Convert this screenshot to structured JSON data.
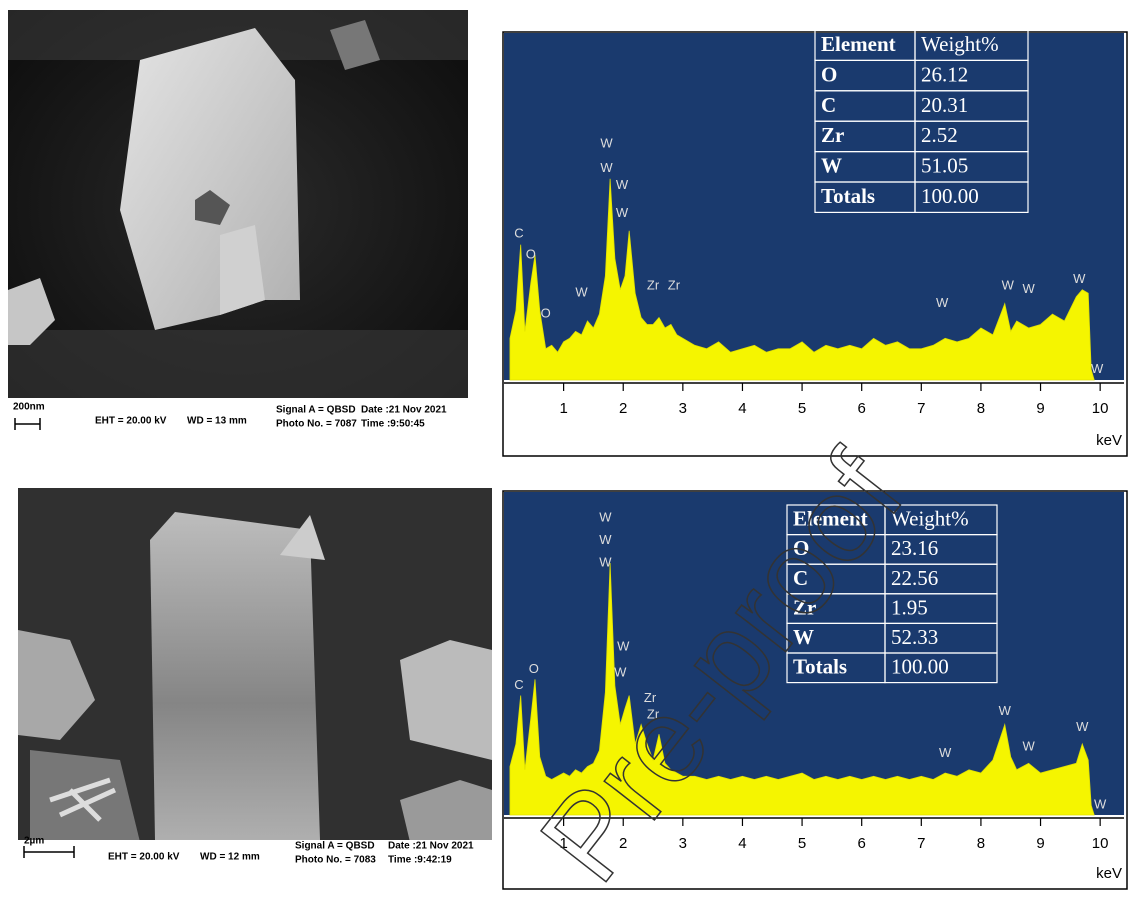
{
  "panels": [
    {
      "sem": {
        "scale_bar": "200nm",
        "eht": "EHT = 20.00 kV",
        "wd": "WD = 13 mm",
        "signal": "Signal A = QBSD",
        "photo": "Photo No. = 7087",
        "date": "Date :21 Nov 2021",
        "time": "Time :9:50:45"
      },
      "edx": {
        "type": "area",
        "x_label": "keV",
        "xlim": [
          0,
          10.4
        ],
        "ylim": [
          0,
          100
        ],
        "xticks": [
          1,
          2,
          3,
          4,
          5,
          6,
          7,
          8,
          9,
          10
        ],
        "x": [
          0.1,
          0.2,
          0.28,
          0.35,
          0.45,
          0.52,
          0.6,
          0.7,
          0.8,
          0.9,
          1.0,
          1.1,
          1.2,
          1.3,
          1.4,
          1.5,
          1.6,
          1.7,
          1.78,
          1.86,
          1.95,
          2.03,
          2.1,
          2.2,
          2.3,
          2.4,
          2.5,
          2.6,
          2.7,
          2.8,
          2.9,
          3.0,
          3.2,
          3.4,
          3.6,
          3.8,
          4.0,
          4.2,
          4.4,
          4.6,
          4.8,
          5.0,
          5.2,
          5.4,
          5.6,
          5.8,
          6.0,
          6.2,
          6.4,
          6.6,
          6.8,
          7.0,
          7.2,
          7.4,
          7.6,
          7.8,
          8.0,
          8.2,
          8.4,
          8.5,
          8.6,
          8.8,
          9.0,
          9.2,
          9.4,
          9.6,
          9.7,
          9.8,
          9.85,
          9.9
        ],
        "y": [
          12,
          20,
          39,
          14,
          28,
          36,
          20,
          9,
          10,
          8,
          11,
          12,
          14,
          13,
          17,
          15,
          19,
          30,
          58,
          35,
          26,
          30,
          43,
          25,
          18,
          16,
          16,
          18,
          15,
          16,
          13,
          12,
          10,
          9,
          11,
          8,
          9,
          10,
          8,
          9,
          9,
          11,
          8,
          10,
          9,
          10,
          9,
          12,
          10,
          11,
          9,
          9,
          10,
          12,
          11,
          12,
          15,
          13,
          22,
          14,
          17,
          15,
          16,
          19,
          17,
          24,
          26,
          25,
          3,
          0
        ],
        "peaks": [
          {
            "label": "C",
            "x": 0.25,
            "y": 42
          },
          {
            "label": "O",
            "x": 0.45,
            "y": 36
          },
          {
            "label": "O",
            "x": 0.7,
            "y": 19
          },
          {
            "label": "W",
            "x": 1.3,
            "y": 25
          },
          {
            "label": "W",
            "x": 1.72,
            "y": 68
          },
          {
            "label": "W",
            "x": 1.72,
            "y": 61
          },
          {
            "label": "W",
            "x": 1.98,
            "y": 56
          },
          {
            "label": "W",
            "x": 1.98,
            "y": 48
          },
          {
            "label": "Zr",
            "x": 2.5,
            "y": 27
          },
          {
            "label": "Zr",
            "x": 2.85,
            "y": 27
          },
          {
            "label": "W",
            "x": 7.35,
            "y": 22
          },
          {
            "label": "W",
            "x": 8.45,
            "y": 27
          },
          {
            "label": "W",
            "x": 8.8,
            "y": 26
          },
          {
            "label": "W",
            "x": 9.65,
            "y": 29
          },
          {
            "label": "W",
            "x": 9.95,
            "y": 3
          }
        ],
        "table": {
          "header": [
            "Element",
            "Weight%"
          ],
          "rows": [
            [
              "O",
              "26.12"
            ],
            [
              "C",
              "20.31"
            ],
            [
              "Zr",
              "2.52"
            ],
            [
              "W",
              "51.05"
            ],
            [
              "Totals",
              "100.00"
            ]
          ]
        }
      }
    },
    {
      "sem": {
        "scale_bar": "2µm",
        "eht": "EHT = 20.00 kV",
        "wd": "WD = 12 mm",
        "signal": "Signal A = QBSD",
        "photo": "Photo No. = 7083",
        "date": "Date :21 Nov 2021",
        "time": "Time :9:42:19"
      },
      "edx": {
        "type": "area",
        "x_label": "keV",
        "xlim": [
          0,
          10.4
        ],
        "ylim": [
          0,
          100
        ],
        "xticks": [
          1,
          2,
          3,
          4,
          5,
          6,
          7,
          8,
          9,
          10
        ],
        "x": [
          0.1,
          0.2,
          0.28,
          0.35,
          0.45,
          0.52,
          0.6,
          0.7,
          0.8,
          0.9,
          1.0,
          1.1,
          1.2,
          1.3,
          1.4,
          1.5,
          1.6,
          1.7,
          1.78,
          1.86,
          1.95,
          2.03,
          2.1,
          2.2,
          2.3,
          2.4,
          2.5,
          2.6,
          2.7,
          2.8,
          2.9,
          3.0,
          3.2,
          3.4,
          3.6,
          3.8,
          4.0,
          4.2,
          4.4,
          4.6,
          4.8,
          5.0,
          5.2,
          5.4,
          5.6,
          5.8,
          6.0,
          6.2,
          6.4,
          6.6,
          6.8,
          7.0,
          7.2,
          7.4,
          7.6,
          7.8,
          8.0,
          8.2,
          8.4,
          8.5,
          8.6,
          8.8,
          9.0,
          9.2,
          9.4,
          9.6,
          9.7,
          9.8,
          9.85,
          9.9
        ],
        "y": [
          15,
          22,
          37,
          14,
          30,
          42,
          18,
          12,
          11,
          12,
          13,
          12,
          14,
          13,
          15,
          16,
          20,
          38,
          78,
          40,
          28,
          33,
          37,
          22,
          28,
          22,
          17,
          25,
          16,
          14,
          13,
          12,
          12,
          11,
          12,
          11,
          12,
          11,
          12,
          11,
          12,
          13,
          11,
          12,
          11,
          12,
          11,
          12,
          11,
          12,
          11,
          12,
          11,
          13,
          12,
          14,
          13,
          17,
          28,
          18,
          14,
          16,
          13,
          14,
          15,
          16,
          22,
          17,
          3,
          0
        ],
        "peaks": [
          {
            "label": "C",
            "x": 0.25,
            "y": 40
          },
          {
            "label": "O",
            "x": 0.5,
            "y": 45
          },
          {
            "label": "W",
            "x": 1.7,
            "y": 92
          },
          {
            "label": "W",
            "x": 1.7,
            "y": 85
          },
          {
            "label": "W",
            "x": 1.7,
            "y": 78
          },
          {
            "label": "W",
            "x": 2.0,
            "y": 52
          },
          {
            "label": "W",
            "x": 1.95,
            "y": 44
          },
          {
            "label": "Zr",
            "x": 2.45,
            "y": 36
          },
          {
            "label": "Zr",
            "x": 2.5,
            "y": 31
          },
          {
            "label": "W",
            "x": 7.4,
            "y": 19
          },
          {
            "label": "W",
            "x": 8.4,
            "y": 32
          },
          {
            "label": "W",
            "x": 8.8,
            "y": 21
          },
          {
            "label": "W",
            "x": 9.7,
            "y": 27
          },
          {
            "label": "W",
            "x": 10.0,
            "y": 3
          }
        ],
        "table": {
          "header": [
            "Element",
            "Weight%"
          ],
          "rows": [
            [
              "O",
              "23.16"
            ],
            [
              "C",
              "22.56"
            ],
            [
              "Zr",
              "1.95"
            ],
            [
              "W",
              "52.33"
            ],
            [
              "Totals",
              "100.00"
            ]
          ]
        }
      }
    }
  ],
  "watermark": "Pre-proof"
}
